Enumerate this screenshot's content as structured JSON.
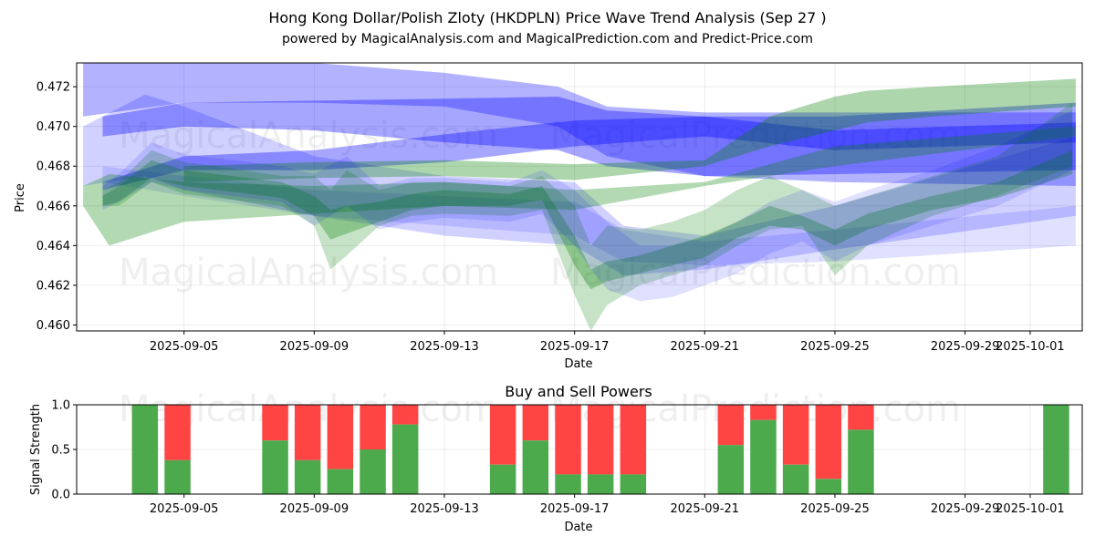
{
  "chart_data": [
    {
      "type": "area",
      "title_line1": "Hong Kong Dollar/Polish Zloty (HKDPLN) Price Wave Trend Analysis (Sep 27 )",
      "title_line2": "powered by MagicalAnalysis.com and MagicalPrediction.com and Predict-Price.com",
      "xlabel": "Date",
      "ylabel": "Price",
      "xlim": [
        1.7,
        32.6
      ],
      "ylim": [
        0.4597,
        0.4732
      ],
      "x_ticks": [
        {
          "x": 5,
          "label": "2025-09-05"
        },
        {
          "x": 9,
          "label": "2025-09-09"
        },
        {
          "x": 13,
          "label": "2025-09-13"
        },
        {
          "x": 17,
          "label": "2025-09-17"
        },
        {
          "x": 21,
          "label": "2025-09-21"
        },
        {
          "x": 25,
          "label": "2025-09-25"
        },
        {
          "x": 29,
          "label": "2025-09-29"
        },
        {
          "x": 31,
          "label": "2025-10-01"
        }
      ],
      "y_ticks": [
        0.46,
        0.462,
        0.464,
        0.466,
        0.468,
        0.47,
        0.472
      ],
      "y_tick_labels": [
        "0.460",
        "0.462",
        "0.464",
        "0.466",
        "0.468",
        "0.470",
        "0.472"
      ],
      "series": [
        {
          "name": "blue-band-upper-wide",
          "color": "#0000ff",
          "opacity": 0.3,
          "x": [
            1.9,
            5,
            9,
            13,
            16.5,
            18,
            21,
            25,
            32.4
          ],
          "upper": [
            0.4738,
            0.4735,
            0.4732,
            0.4727,
            0.472,
            0.471,
            0.4707,
            0.4707,
            0.4707
          ],
          "lower": [
            0.4705,
            0.4712,
            0.4712,
            0.471,
            0.47,
            0.4685,
            0.4675,
            0.4672,
            0.467
          ]
        },
        {
          "name": "blue-band-upper-narrow",
          "color": "#0000ff",
          "opacity": 0.35,
          "x": [
            2.5,
            5,
            9,
            13,
            16.5,
            18,
            21,
            25,
            32.4
          ],
          "upper": [
            0.4705,
            0.4712,
            0.4713,
            0.4714,
            0.4715,
            0.4708,
            0.4705,
            0.4705,
            0.4712
          ],
          "lower": [
            0.4695,
            0.47,
            0.4698,
            0.4692,
            0.4688,
            0.468,
            0.4675,
            0.4676,
            0.4678
          ]
        },
        {
          "name": "blue-band-middle",
          "color": "#0000ff",
          "opacity": 0.35,
          "x": [
            2.5,
            5,
            9,
            13,
            17,
            21,
            25,
            32.4
          ],
          "upper": [
            0.4672,
            0.4685,
            0.4688,
            0.4696,
            0.4703,
            0.4705,
            0.4698,
            0.4702
          ],
          "lower": [
            0.4668,
            0.4678,
            0.4678,
            0.4682,
            0.469,
            0.4695,
            0.4688,
            0.4692
          ]
        },
        {
          "name": "blue-band-lower-wide",
          "color": "#0000ff",
          "opacity": 0.18,
          "x": [
            1.9,
            3.8,
            5,
            9,
            13,
            17,
            18.5,
            21,
            25,
            32.4
          ],
          "upper": [
            0.47,
            0.4716,
            0.471,
            0.4685,
            0.4675,
            0.4672,
            0.465,
            0.4645,
            0.466,
            0.4695
          ],
          "lower": [
            0.467,
            0.4675,
            0.4668,
            0.4655,
            0.4645,
            0.464,
            0.4625,
            0.4628,
            0.4638,
            0.4655
          ]
        },
        {
          "name": "blue-band-lower-narrow",
          "color": "#0000ff",
          "opacity": 0.12,
          "x": [
            2.5,
            5,
            9,
            13,
            17,
            18.5,
            21,
            25,
            32.4
          ],
          "upper": [
            0.468,
            0.4675,
            0.4668,
            0.4665,
            0.4662,
            0.4648,
            0.4642,
            0.4648,
            0.466
          ],
          "lower": [
            0.4672,
            0.4665,
            0.4655,
            0.465,
            0.4645,
            0.4632,
            0.463,
            0.4632,
            0.464
          ]
        },
        {
          "name": "green-band-upper",
          "color": "#008000",
          "opacity": 0.32,
          "x": [
            5,
            9,
            13,
            17,
            21,
            23,
            25,
            26,
            28,
            32.4
          ],
          "upper": [
            0.468,
            0.4682,
            0.4683,
            0.4681,
            0.4683,
            0.4705,
            0.4715,
            0.4718,
            0.472,
            0.4724
          ],
          "lower": [
            0.4672,
            0.4674,
            0.4675,
            0.4673,
            0.468,
            0.469,
            0.4698,
            0.4702,
            0.4705,
            0.471
          ]
        },
        {
          "name": "green-band-lower",
          "color": "#008000",
          "opacity": 0.3,
          "x": [
            1.9,
            2.7,
            5,
            9,
            13,
            17,
            21,
            25,
            32.4
          ],
          "upper": [
            0.467,
            0.4676,
            0.4672,
            0.467,
            0.4672,
            0.4668,
            0.4672,
            0.469,
            0.47
          ],
          "lower": [
            0.466,
            0.464,
            0.4652,
            0.4656,
            0.466,
            0.4658,
            0.467,
            0.468,
            0.4695
          ]
        },
        {
          "name": "green-wave-outer",
          "color": "#008000",
          "opacity": 0.22,
          "x": [
            2.5,
            3,
            4,
            5,
            6,
            8,
            9,
            9.5,
            10,
            11,
            12,
            13,
            15,
            16,
            17,
            17.5,
            18,
            19,
            20,
            21,
            22,
            23,
            24,
            25,
            26,
            28,
            30,
            32.3
          ],
          "upper": [
            0.4668,
            0.4672,
            0.4688,
            0.4682,
            0.468,
            0.4675,
            0.4675,
            0.4668,
            0.4678,
            0.4668,
            0.4672,
            0.4672,
            0.467,
            0.4675,
            0.466,
            0.464,
            0.465,
            0.4648,
            0.4652,
            0.4658,
            0.4668,
            0.4675,
            0.4668,
            0.466,
            0.4665,
            0.4675,
            0.4685,
            0.4712
          ],
          "lower": [
            0.466,
            0.466,
            0.4672,
            0.4666,
            0.4664,
            0.466,
            0.465,
            0.4628,
            0.4635,
            0.465,
            0.4655,
            0.4656,
            0.4655,
            0.4658,
            0.4615,
            0.4597,
            0.461,
            0.462,
            0.4625,
            0.463,
            0.464,
            0.4648,
            0.465,
            0.4625,
            0.464,
            0.4655,
            0.4665,
            0.468
          ]
        },
        {
          "name": "green-wave-inner",
          "color": "#008000",
          "opacity": 0.3,
          "x": [
            2.5,
            3,
            4,
            5,
            6,
            8,
            9,
            9.5,
            10,
            11,
            12,
            13,
            15,
            16,
            17,
            17.5,
            18,
            19,
            20,
            21,
            22,
            23,
            24,
            25,
            26,
            28,
            30,
            32.3
          ],
          "upper": [
            0.4665,
            0.467,
            0.4683,
            0.4678,
            0.4676,
            0.4672,
            0.4665,
            0.4658,
            0.466,
            0.4662,
            0.4666,
            0.4668,
            0.4666,
            0.467,
            0.4645,
            0.4628,
            0.4632,
            0.4635,
            0.464,
            0.4645,
            0.4652,
            0.466,
            0.4655,
            0.4648,
            0.4656,
            0.4665,
            0.4672,
            0.4688
          ],
          "lower": [
            0.466,
            0.4662,
            0.4674,
            0.467,
            0.4668,
            0.4664,
            0.4655,
            0.4643,
            0.4646,
            0.4652,
            0.4658,
            0.466,
            0.466,
            0.4663,
            0.463,
            0.4618,
            0.4622,
            0.4626,
            0.463,
            0.4634,
            0.4644,
            0.465,
            0.4648,
            0.464,
            0.4648,
            0.4658,
            0.4664,
            0.4676
          ]
        },
        {
          "name": "blue-wave",
          "color": "#0000ff",
          "opacity": 0.12,
          "x": [
            2.5,
            3,
            4,
            5,
            6,
            8,
            9,
            10,
            11,
            12,
            13,
            15,
            16,
            17,
            17.5,
            18,
            19,
            20,
            21,
            22,
            23,
            24,
            25,
            26,
            28,
            30,
            32.3
          ],
          "upper": [
            0.467,
            0.4676,
            0.4692,
            0.4686,
            0.4684,
            0.468,
            0.4676,
            0.4685,
            0.467,
            0.4674,
            0.4674,
            0.4672,
            0.4678,
            0.4668,
            0.466,
            0.4652,
            0.464,
            0.464,
            0.4644,
            0.4652,
            0.4662,
            0.4668,
            0.4662,
            0.4668,
            0.4678,
            0.469,
            0.4708
          ],
          "lower": [
            0.4658,
            0.4662,
            0.4672,
            0.4668,
            0.4666,
            0.4662,
            0.465,
            0.466,
            0.4648,
            0.4652,
            0.4654,
            0.4652,
            0.4656,
            0.464,
            0.4628,
            0.4618,
            0.4612,
            0.4614,
            0.462,
            0.4626,
            0.4636,
            0.4642,
            0.4632,
            0.464,
            0.465,
            0.466,
            0.4678
          ]
        }
      ]
    },
    {
      "type": "bar",
      "title": "Buy and Sell Powers",
      "xlabel": "Date",
      "ylabel": "Signal Strength",
      "xlim": [
        1.7,
        32.6
      ],
      "ylim": [
        0,
        1
      ],
      "y_ticks": [
        0.0,
        0.5,
        1.0
      ],
      "y_tick_labels": [
        "0.0",
        "0.5",
        "1.0"
      ],
      "x_ticks": [
        {
          "x": 5,
          "label": "2025-09-05"
        },
        {
          "x": 9,
          "label": "2025-09-09"
        },
        {
          "x": 13,
          "label": "2025-09-13"
        },
        {
          "x": 17,
          "label": "2025-09-17"
        },
        {
          "x": 21,
          "label": "2025-09-21"
        },
        {
          "x": 25,
          "label": "2025-09-25"
        },
        {
          "x": 29,
          "label": "2025-09-29"
        },
        {
          "x": 31,
          "label": "2025-10-01"
        }
      ],
      "buy_color": "#4caa4c",
      "sell_color": "#ff4444",
      "bars": [
        {
          "x": 3.8,
          "buy": 1.0
        },
        {
          "x": 4.8,
          "buy": 0.38
        },
        {
          "x": 7.8,
          "buy": 0.6
        },
        {
          "x": 8.8,
          "buy": 0.38
        },
        {
          "x": 9.8,
          "buy": 0.28
        },
        {
          "x": 10.8,
          "buy": 0.5
        },
        {
          "x": 11.8,
          "buy": 0.78
        },
        {
          "x": 14.8,
          "buy": 0.33
        },
        {
          "x": 15.8,
          "buy": 0.6
        },
        {
          "x": 16.8,
          "buy": 0.22
        },
        {
          "x": 17.8,
          "buy": 0.22
        },
        {
          "x": 18.8,
          "buy": 0.22
        },
        {
          "x": 21.8,
          "buy": 0.55
        },
        {
          "x": 22.8,
          "buy": 0.83
        },
        {
          "x": 23.8,
          "buy": 0.33
        },
        {
          "x": 24.8,
          "buy": 0.17
        },
        {
          "x": 25.8,
          "buy": 0.72
        },
        {
          "x": 31.8,
          "buy": 1.0
        }
      ]
    }
  ],
  "watermarks": [
    "MagicalAnalysis.com",
    "MagicalPrediction.com",
    "MagicalAnalysis.com",
    "MagicalPrediction.com",
    "MagicalAnalysis.com",
    "MagicalPrediction.com"
  ]
}
